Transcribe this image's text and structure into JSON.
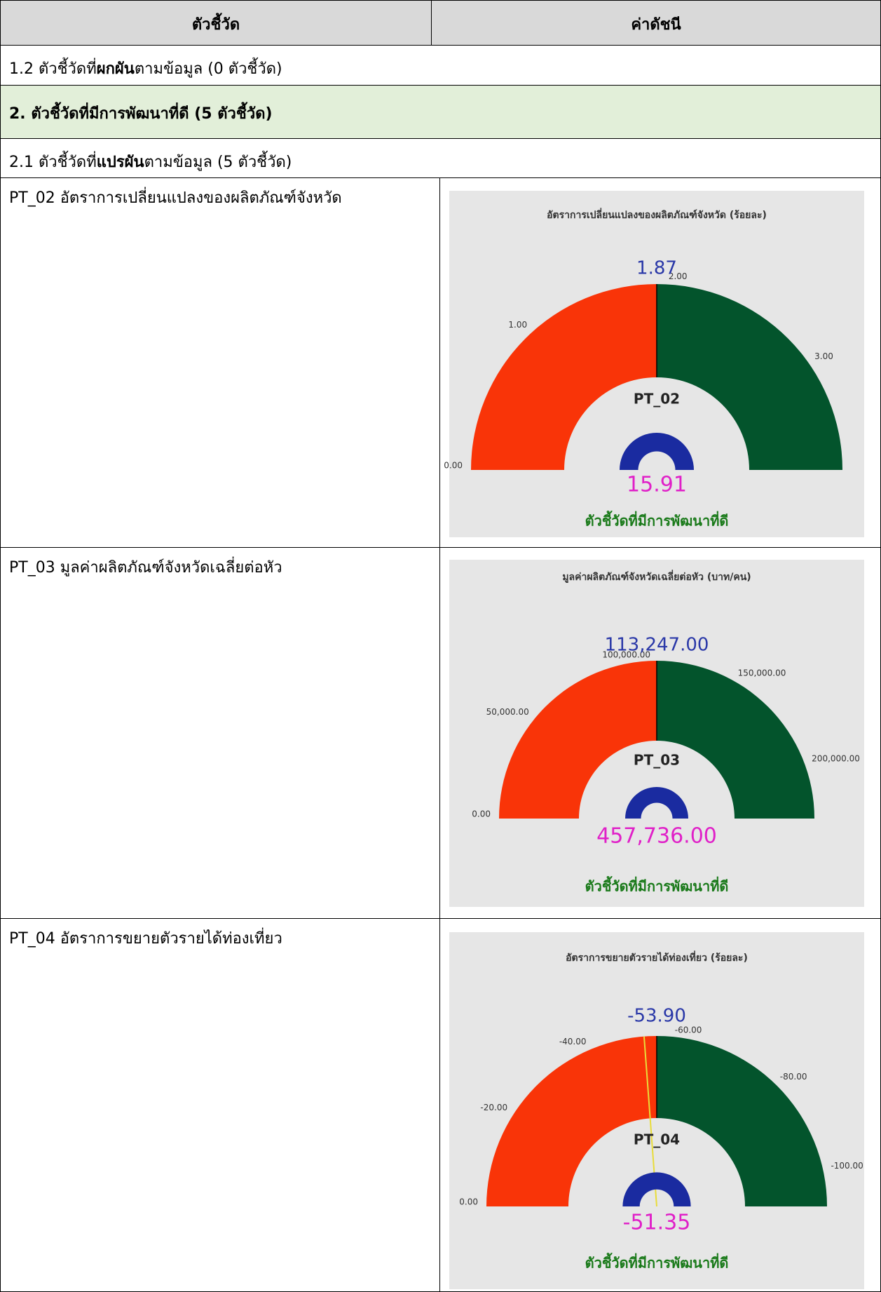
{
  "header": [
    "ตัวชี้วัด",
    "ค่าดัชนี"
  ],
  "sections": [
    {
      "parts": [
        "1.2 ตัวชี้วัดที่",
        "ผกผัน",
        "ตามข้อมูล (0 ตัวชี้วัด)"
      ]
    },
    {
      "title": "2. ตัวชี้วัดที่มีการพัฒนาที่ดี (5 ตัวชี้วัด)"
    },
    {
      "parts": [
        "2.1 ตัวชี้วัดที่",
        "แปรผัน",
        "ตามข้อมูล (5 ตัวชี้วัด)"
      ]
    }
  ],
  "indicators": [
    "PT_02 อัตราการเปลี่ยนแปลงของผลิตภัณฑ์จังหวัด",
    "PT_03 มูลค่าผลิตภัณฑ์จังหวัดเฉลี่ยต่อหัว",
    "PT_04 อัตราการขยายตัวรายได้ท่องเที่ยว"
  ],
  "chart_data": [
    {
      "type": "gauge",
      "title": "อัตราการเปลี่ยนแปลงของผลิตภัณฑ์จังหวัด (ร้อยละ)",
      "center_label": "PT_02",
      "value": 1.87,
      "value_label": "1.87",
      "ylim": [
        0,
        3.74
      ],
      "yticks": [
        {
          "value": 0,
          "label": "0.00"
        },
        {
          "value": 1,
          "label": "1.00"
        },
        {
          "value": 2,
          "label": "2.00"
        },
        {
          "value": 3,
          "label": "3.00"
        }
      ],
      "target": 15.91,
      "target_label": "15.91",
      "status": "ตัวชี้วัดที่มีการพัฒนาที่ดี",
      "colors": {
        "value": "#f93408",
        "remainder": "#03542c",
        "target": "#e8dc3a"
      }
    },
    {
      "type": "gauge",
      "title": "มูลค่าผลิตภัณฑ์จังหวัดเฉลี่ยต่อหัว (บาท/คน)",
      "center_label": "PT_03",
      "value": 113247,
      "value_label": "113,247.00",
      "ylim": [
        0,
        226494
      ],
      "yticks": [
        {
          "value": 0,
          "label": "0.00"
        },
        {
          "value": 50000,
          "label": "50,000.00"
        },
        {
          "value": 100000,
          "label": "100,000.00"
        },
        {
          "value": 150000,
          "label": "150,000.00"
        },
        {
          "value": 200000,
          "label": "200,000.00"
        }
      ],
      "target": 457736,
      "target_label": "457,736.00",
      "status": "ตัวชี้วัดที่มีการพัฒนาที่ดี",
      "colors": {
        "value": "#f93408",
        "remainder": "#03542c",
        "target": "#e8dc3a"
      }
    },
    {
      "type": "gauge",
      "title": "อัตราการขยายตัวรายได้ท่องเที่ยว (ร้อยละ)",
      "center_label": "PT_04",
      "value": -53.9,
      "value_label": "-53.90",
      "ylim": [
        0,
        -107.8
      ],
      "yticks": [
        {
          "value": 0,
          "label": "0.00"
        },
        {
          "value": -20,
          "label": "-20.00"
        },
        {
          "value": -40,
          "label": "-40.00"
        },
        {
          "value": -60,
          "label": "-60.00"
        },
        {
          "value": -80,
          "label": "-80.00"
        },
        {
          "value": -100,
          "label": "-100.00"
        }
      ],
      "target": -51.35,
      "target_label": "-51.35",
      "status": "ตัวชี้วัดที่มีการพัฒนาที่ดี",
      "colors": {
        "value": "#f93408",
        "remainder": "#03542c",
        "target": "#e8dc3a"
      }
    }
  ]
}
